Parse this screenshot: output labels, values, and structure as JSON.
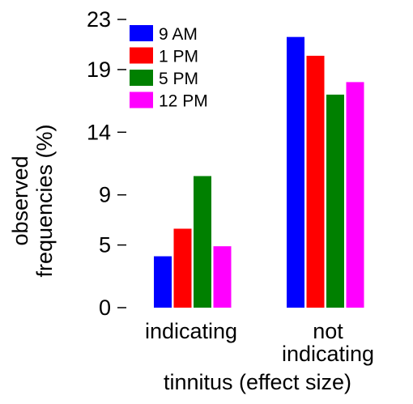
{
  "chart_data": {
    "type": "bar",
    "categories": [
      [
        "indicating"
      ],
      [
        "not",
        "indicating"
      ]
    ],
    "series": [
      {
        "name": "9 AM",
        "color": "#0000ff",
        "values": [
          4.1,
          21.6
        ]
      },
      {
        "name": "1 PM",
        "color": "#ff0000",
        "values": [
          6.3,
          20.1
        ]
      },
      {
        "name": "5 PM",
        "color": "#008000",
        "values": [
          10.5,
          17.0
        ]
      },
      {
        "name": "12 PM",
        "color": "#ff00ff",
        "values": [
          4.9,
          18.0
        ]
      }
    ],
    "yticks": [
      0,
      5,
      9,
      14,
      19,
      23
    ],
    "ylim": [
      0,
      23
    ],
    "ylabel": [
      "observed",
      "frequencies (%)"
    ],
    "xlabel": "tinnitus (effect size)",
    "legend_position": "top-left",
    "grid": false
  }
}
